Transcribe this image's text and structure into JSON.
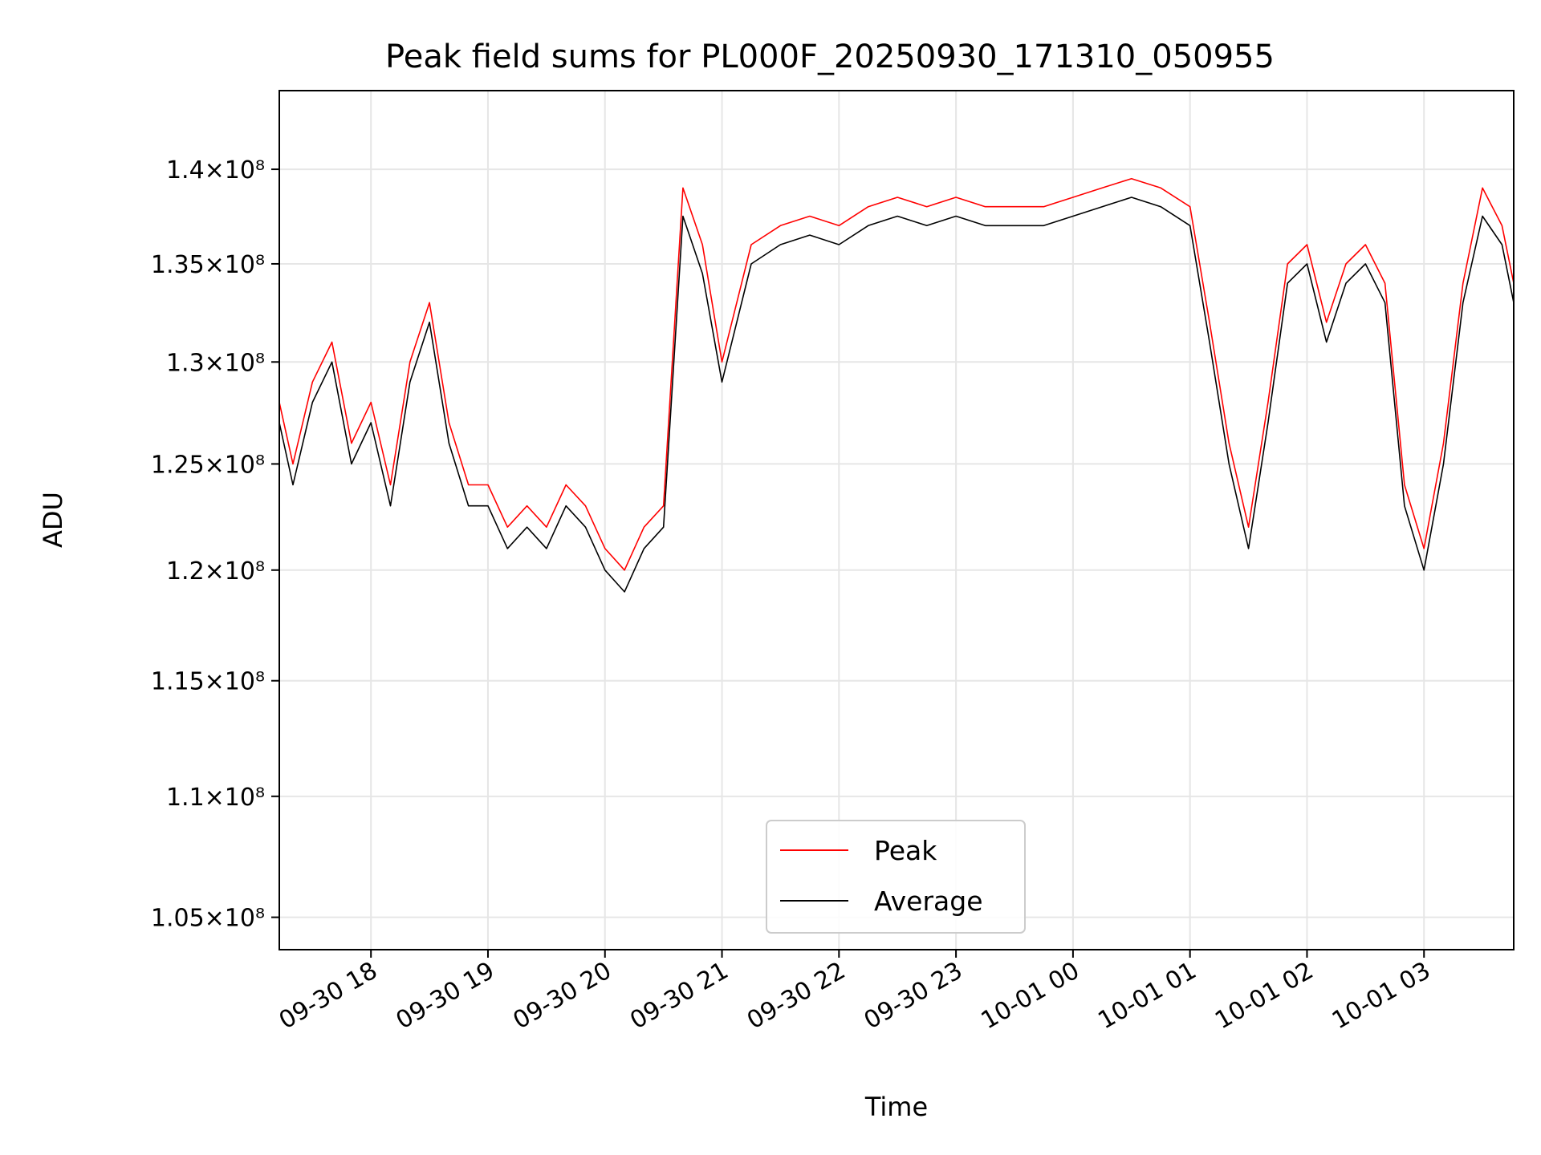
{
  "chart_data": {
    "type": "line",
    "title": "Peak field sums for PL000F_20250930_171310_050955",
    "xlabel": "Time",
    "ylabel": "ADU",
    "yscale": "log",
    "xlim": [
      "2025-09-30 17:13",
      "2025-10-01 03:46"
    ],
    "ylim": [
      103700000,
      144300000
    ],
    "grid": true,
    "legend_position": "bottom-center",
    "x_ticks": [
      {
        "time": "2025-09-30 18:00",
        "label": "09-30 18"
      },
      {
        "time": "2025-09-30 19:00",
        "label": "09-30 19"
      },
      {
        "time": "2025-09-30 20:00",
        "label": "09-30 20"
      },
      {
        "time": "2025-09-30 21:00",
        "label": "09-30 21"
      },
      {
        "time": "2025-09-30 22:00",
        "label": "09-30 22"
      },
      {
        "time": "2025-09-30 23:00",
        "label": "09-30 23"
      },
      {
        "time": "2025-10-01 00:00",
        "label": "10-01 00"
      },
      {
        "time": "2025-10-01 01:00",
        "label": "10-01 01"
      },
      {
        "time": "2025-10-01 02:00",
        "label": "10-01 02"
      },
      {
        "time": "2025-10-01 03:00",
        "label": "10-01 03"
      }
    ],
    "y_ticks": [
      {
        "value": 105000000,
        "label": "1.05×10⁸"
      },
      {
        "value": 110000000,
        "label": "1.1×10⁸"
      },
      {
        "value": 115000000,
        "label": "1.15×10⁸"
      },
      {
        "value": 120000000,
        "label": "1.2×10⁸"
      },
      {
        "value": 125000000,
        "label": "1.25×10⁸"
      },
      {
        "value": 130000000,
        "label": "1.3×10⁸"
      },
      {
        "value": 135000000,
        "label": "1.35×10⁸"
      },
      {
        "value": 140000000,
        "label": "1.4×10⁸"
      }
    ],
    "series": [
      {
        "name": "Peak",
        "color": "#ff0000",
        "times": [
          "2025-09-30 17:13",
          "2025-09-30 17:20",
          "2025-09-30 17:30",
          "2025-09-30 17:40",
          "2025-09-30 17:50",
          "2025-09-30 18:00",
          "2025-09-30 18:10",
          "2025-09-30 18:20",
          "2025-09-30 18:30",
          "2025-09-30 18:40",
          "2025-09-30 18:50",
          "2025-09-30 19:00",
          "2025-09-30 19:10",
          "2025-09-30 19:20",
          "2025-09-30 19:30",
          "2025-09-30 19:40",
          "2025-09-30 19:50",
          "2025-09-30 20:00",
          "2025-09-30 20:10",
          "2025-09-30 20:20",
          "2025-09-30 20:30",
          "2025-09-30 20:40",
          "2025-09-30 20:50",
          "2025-09-30 21:00",
          "2025-09-30 21:15",
          "2025-09-30 21:30",
          "2025-09-30 21:45",
          "2025-09-30 22:00",
          "2025-09-30 22:15",
          "2025-09-30 22:30",
          "2025-09-30 22:45",
          "2025-09-30 23:00",
          "2025-09-30 23:15",
          "2025-09-30 23:30",
          "2025-09-30 23:45",
          "2025-10-01 00:00",
          "2025-10-01 00:15",
          "2025-10-01 00:30",
          "2025-10-01 00:45",
          "2025-10-01 01:00",
          "2025-10-01 01:10",
          "2025-10-01 01:20",
          "2025-10-01 01:30",
          "2025-10-01 01:40",
          "2025-10-01 01:50",
          "2025-10-01 02:00",
          "2025-10-01 02:10",
          "2025-10-01 02:20",
          "2025-10-01 02:30",
          "2025-10-01 02:40",
          "2025-10-01 02:50",
          "2025-10-01 03:00",
          "2025-10-01 03:10",
          "2025-10-01 03:20",
          "2025-10-01 03:30",
          "2025-10-01 03:40",
          "2025-10-01 03:46"
        ],
        "values": [
          128000000,
          125000000,
          129000000,
          131000000,
          126000000,
          128000000,
          124000000,
          130000000,
          133000000,
          127000000,
          124000000,
          124000000,
          122000000,
          123000000,
          122000000,
          124000000,
          123000000,
          121000000,
          120000000,
          122000000,
          123000000,
          139000000,
          136000000,
          130000000,
          136000000,
          137000000,
          137500000,
          137000000,
          138000000,
          138500000,
          138000000,
          138500000,
          138000000,
          138000000,
          138000000,
          138500000,
          139000000,
          139500000,
          139000000,
          138000000,
          132000000,
          126000000,
          122000000,
          128000000,
          135000000,
          136000000,
          132000000,
          135000000,
          136000000,
          134000000,
          124000000,
          121000000,
          126000000,
          134000000,
          139000000,
          137000000,
          134000000
        ]
      },
      {
        "name": "Average",
        "color": "#000000",
        "times": [
          "2025-09-30 17:13",
          "2025-09-30 17:20",
          "2025-09-30 17:30",
          "2025-09-30 17:40",
          "2025-09-30 17:50",
          "2025-09-30 18:00",
          "2025-09-30 18:10",
          "2025-09-30 18:20",
          "2025-09-30 18:30",
          "2025-09-30 18:40",
          "2025-09-30 18:50",
          "2025-09-30 19:00",
          "2025-09-30 19:10",
          "2025-09-30 19:20",
          "2025-09-30 19:30",
          "2025-09-30 19:40",
          "2025-09-30 19:50",
          "2025-09-30 20:00",
          "2025-09-30 20:10",
          "2025-09-30 20:20",
          "2025-09-30 20:30",
          "2025-09-30 20:40",
          "2025-09-30 20:50",
          "2025-09-30 21:00",
          "2025-09-30 21:15",
          "2025-09-30 21:30",
          "2025-09-30 21:45",
          "2025-09-30 22:00",
          "2025-09-30 22:15",
          "2025-09-30 22:30",
          "2025-09-30 22:45",
          "2025-09-30 23:00",
          "2025-09-30 23:15",
          "2025-09-30 23:30",
          "2025-09-30 23:45",
          "2025-10-01 00:00",
          "2025-10-01 00:15",
          "2025-10-01 00:30",
          "2025-10-01 00:45",
          "2025-10-01 01:00",
          "2025-10-01 01:10",
          "2025-10-01 01:20",
          "2025-10-01 01:30",
          "2025-10-01 01:40",
          "2025-10-01 01:50",
          "2025-10-01 02:00",
          "2025-10-01 02:10",
          "2025-10-01 02:20",
          "2025-10-01 02:30",
          "2025-10-01 02:40",
          "2025-10-01 02:50",
          "2025-10-01 03:00",
          "2025-10-01 03:10",
          "2025-10-01 03:20",
          "2025-10-01 03:30",
          "2025-10-01 03:40",
          "2025-10-01 03:46"
        ],
        "values": [
          127000000,
          124000000,
          128000000,
          130000000,
          125000000,
          127000000,
          123000000,
          129000000,
          132000000,
          126000000,
          123000000,
          123000000,
          121000000,
          122000000,
          121000000,
          123000000,
          122000000,
          120000000,
          119000000,
          121000000,
          122000000,
          137500000,
          134500000,
          129000000,
          135000000,
          136000000,
          136500000,
          136000000,
          137000000,
          137500000,
          137000000,
          137500000,
          137000000,
          137000000,
          137000000,
          137500000,
          138000000,
          138500000,
          138000000,
          137000000,
          131000000,
          125000000,
          121000000,
          127000000,
          134000000,
          135000000,
          131000000,
          134000000,
          135000000,
          133000000,
          123000000,
          120000000,
          125000000,
          133000000,
          137500000,
          136000000,
          133000000
        ]
      }
    ]
  }
}
